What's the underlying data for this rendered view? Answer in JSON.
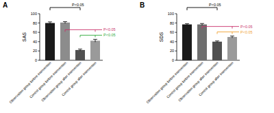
{
  "chart_data": [
    {
      "type": "bar",
      "title": "A",
      "ylabel": "SAS",
      "categories": [
        "Observation group before intervention",
        "Control group before intervention",
        "Observation group after intervention",
        "Control group after intervention"
      ],
      "values": [
        80,
        81,
        22,
        42
      ],
      "errors": [
        2.5,
        2,
        2,
        3
      ],
      "colors": [
        "#1a1a1a",
        "#8c8c8c",
        "#505050",
        "#9a9a9a"
      ],
      "ylim": [
        0,
        100
      ],
      "yticks": [
        0,
        20,
        40,
        60,
        80,
        100
      ],
      "annotations": [
        {
          "text": "P<0.05",
          "from": 0,
          "to": 2,
          "color": "#000000"
        },
        {
          "text": "P<0.05",
          "from": 1,
          "to": 3,
          "color": "#c8306a"
        },
        {
          "text": "P<0.05",
          "from": 2,
          "to": 3,
          "color": "#2fa83a"
        }
      ]
    },
    {
      "type": "bar",
      "title": "B",
      "ylabel": "SDS",
      "categories": [
        "Observation group before intervention",
        "Control group before intervention",
        "Observation group after intervention",
        "Control group after intervention"
      ],
      "values": [
        77,
        77,
        40,
        50
      ],
      "errors": [
        1.5,
        2,
        1.5,
        2
      ],
      "colors": [
        "#1a1a1a",
        "#6e6e6e",
        "#505050",
        "#9a9a9a"
      ],
      "ylim": [
        0,
        100
      ],
      "yticks": [
        0,
        20,
        40,
        60,
        80,
        100
      ],
      "annotations": [
        {
          "text": "P<0.05",
          "from": 0,
          "to": 2,
          "color": "#000000"
        },
        {
          "text": "P<0.05",
          "from": 1,
          "to": 3,
          "color": "#c8306a"
        },
        {
          "text": "P<0.05",
          "from": 2,
          "to": 3,
          "color": "#f0a030"
        }
      ]
    }
  ]
}
